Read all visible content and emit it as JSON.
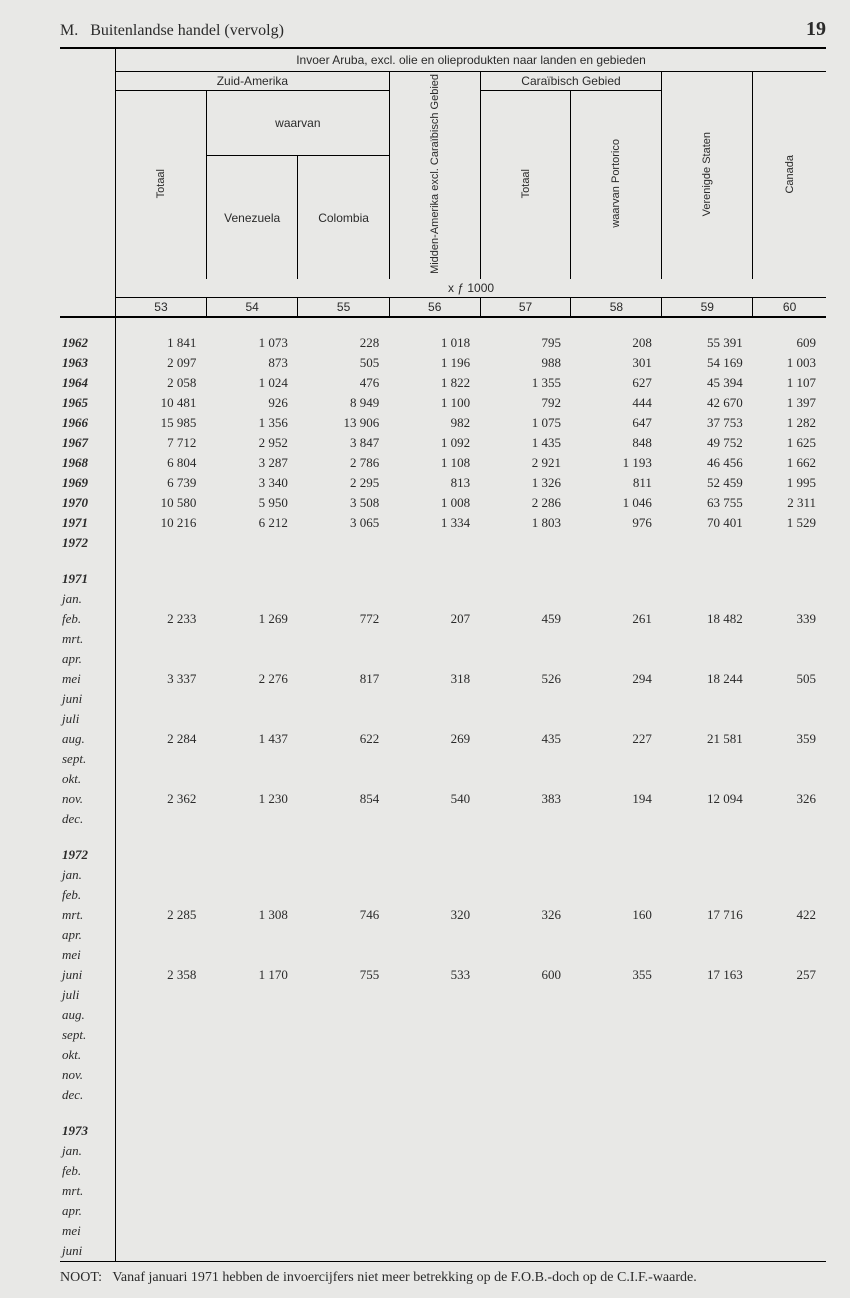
{
  "page": {
    "section_letter": "M.",
    "section_title": "Buitenlandse handel (vervolg)",
    "page_number": "19"
  },
  "table": {
    "top_title": "Invoer Aruba, excl. olie en olieprodukten naar landen en gebieden",
    "group_zuid": "Zuid-Amerika",
    "group_caraib": "Caraïbisch  Gebied",
    "sub_waarvan": "waarvan",
    "col_totaal": "Totaal",
    "col_venezuela": "Venezuela",
    "col_colombia": "Colombia",
    "col_midden": "Midden-Amerika\nexcl.\nCaraïbisch Gebied",
    "col_carib_totaal": "Totaal",
    "col_portorico": "waarvan\nPortorico",
    "col_vs": "Verenigde\nStaten",
    "col_canada": "Canada",
    "unit": "x ƒ 1000",
    "colnums": [
      "53",
      "54",
      "55",
      "56",
      "57",
      "58",
      "59",
      "60"
    ]
  },
  "years": [
    {
      "y": "1962",
      "v": [
        "1 841",
        "1 073",
        "228",
        "1 018",
        "795",
        "208",
        "55 391",
        "609"
      ]
    },
    {
      "y": "1963",
      "v": [
        "2 097",
        "873",
        "505",
        "1 196",
        "988",
        "301",
        "54 169",
        "1 003"
      ]
    },
    {
      "y": "1964",
      "v": [
        "2 058",
        "1 024",
        "476",
        "1 822",
        "1 355",
        "627",
        "45 394",
        "1 107"
      ]
    },
    {
      "y": "1965",
      "v": [
        "10 481",
        "926",
        "8 949",
        "1 100",
        "792",
        "444",
        "42 670",
        "1 397"
      ]
    },
    {
      "y": "1966",
      "v": [
        "15 985",
        "1 356",
        "13 906",
        "982",
        "1 075",
        "647",
        "37 753",
        "1 282"
      ]
    },
    {
      "y": "1967",
      "v": [
        "7 712",
        "2 952",
        "3 847",
        "1 092",
        "1 435",
        "848",
        "49 752",
        "1 625"
      ]
    },
    {
      "y": "1968",
      "v": [
        "6 804",
        "3 287",
        "2 786",
        "1 108",
        "2 921",
        "1 193",
        "46 456",
        "1 662"
      ]
    },
    {
      "y": "1969",
      "v": [
        "6 739",
        "3 340",
        "2 295",
        "813",
        "1 326",
        "811",
        "52 459",
        "1 995"
      ]
    },
    {
      "y": "1970",
      "v": [
        "10 580",
        "5 950",
        "3 508",
        "1 008",
        "2 286",
        "1 046",
        "63 755",
        "2 311"
      ]
    },
    {
      "y": "1971",
      "v": [
        "10 216",
        "6 212",
        "3 065",
        "1 334",
        "1 803",
        "976",
        "70 401",
        "1 529"
      ]
    },
    {
      "y": "1972",
      "v": [
        "",
        "",
        "",
        "",
        "",
        "",
        "",
        ""
      ]
    }
  ],
  "months1971": {
    "header": "1971",
    "labels": [
      "jan.",
      "feb.",
      "mrt.",
      "apr.",
      "mei",
      "juni",
      "juli",
      "aug.",
      "sept.",
      "okt.",
      "nov.",
      "dec."
    ],
    "rows": [
      {
        "v": [
          "2 233",
          "1 269",
          "772",
          "207",
          "459",
          "261",
          "18 482",
          "339"
        ]
      },
      {
        "v": [
          "3 337",
          "2 276",
          "817",
          "318",
          "526",
          "294",
          "18 244",
          "505"
        ]
      },
      {
        "v": [
          "2 284",
          "1 437",
          "622",
          "269",
          "435",
          "227",
          "21 581",
          "359"
        ]
      },
      {
        "v": [
          "2 362",
          "1 230",
          "854",
          "540",
          "383",
          "194",
          "12 094",
          "326"
        ]
      }
    ]
  },
  "months1972": {
    "header": "1972",
    "labels": [
      "jan.",
      "feb.",
      "mrt.",
      "apr.",
      "mei",
      "juni",
      "juli",
      "aug.",
      "sept.",
      "okt.",
      "nov.",
      "dec."
    ],
    "rows": [
      {
        "v": [
          "2 285",
          "1 308",
          "746",
          "320",
          "326",
          "160",
          "17 716",
          "422"
        ]
      },
      {
        "v": [
          "2 358",
          "1 170",
          "755",
          "533",
          "600",
          "355",
          "17 163",
          "257"
        ]
      }
    ]
  },
  "months1973": {
    "header": "1973",
    "labels": [
      "jan.",
      "feb.",
      "mrt.",
      "apr.",
      "mei",
      "juni"
    ]
  },
  "footnote": {
    "label": "NOOT:",
    "text": "Vanaf januari 1971 hebben de invoercijfers niet meer betrekking op de F.O.B.-doch op de C.I.F.-waarde."
  },
  "style": {
    "bg": "#e8e8e6",
    "ink": "#2a2a2a"
  }
}
